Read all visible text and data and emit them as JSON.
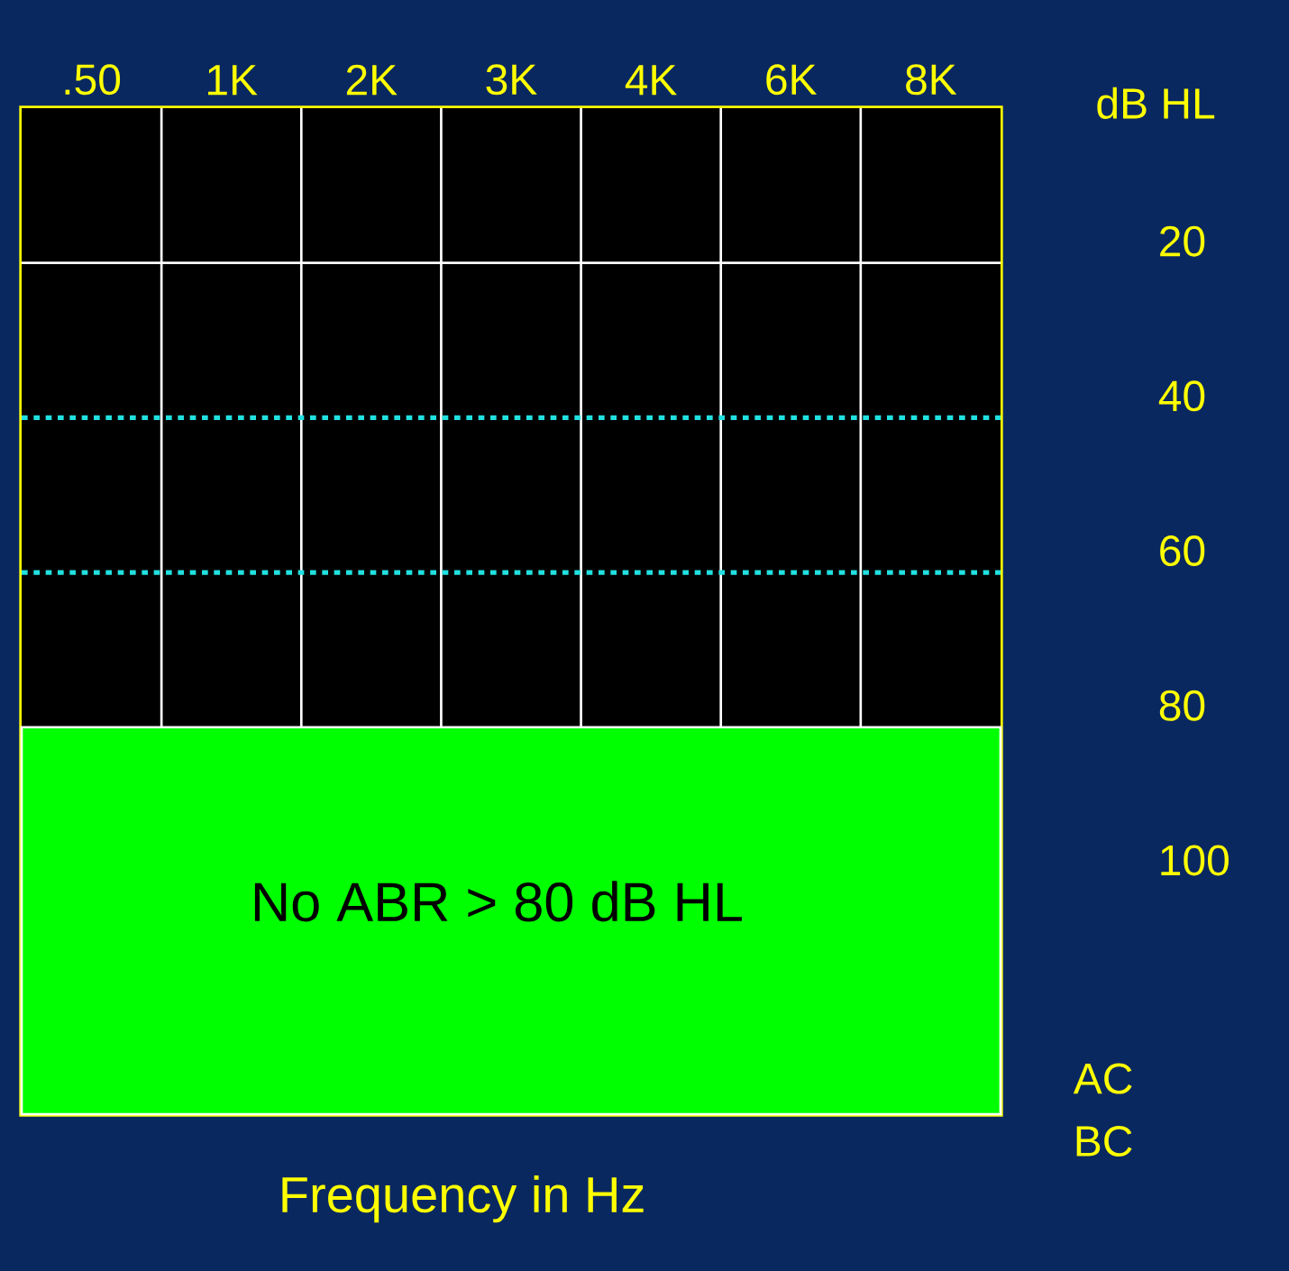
{
  "chart_data": {
    "type": "line",
    "categories": [
      ".50",
      "1K",
      "2K",
      "3K",
      "4K",
      "6K",
      "8K"
    ],
    "xlabel": "Frequency in Hz",
    "ylabel": "dB HL",
    "ylim": [
      130,
      0
    ],
    "yticks": [
      20,
      40,
      60,
      80,
      100
    ],
    "grid": "x",
    "ref_lines": [
      {
        "axis": "y",
        "value": 20,
        "color": "#ffffff",
        "line_style": "solid"
      },
      {
        "axis": "y",
        "value": 40,
        "color": "#22e0e0",
        "line_style": "dotted"
      },
      {
        "axis": "y",
        "value": 60,
        "color": "#22e0e0",
        "line_style": "dotted"
      }
    ],
    "bands": [
      {
        "axis": "y",
        "from": 80,
        "to": 130,
        "label": "No ABR > 80 dB HL",
        "color": "#00ff00"
      }
    ],
    "annotations": [
      "AC",
      "BC"
    ]
  }
}
